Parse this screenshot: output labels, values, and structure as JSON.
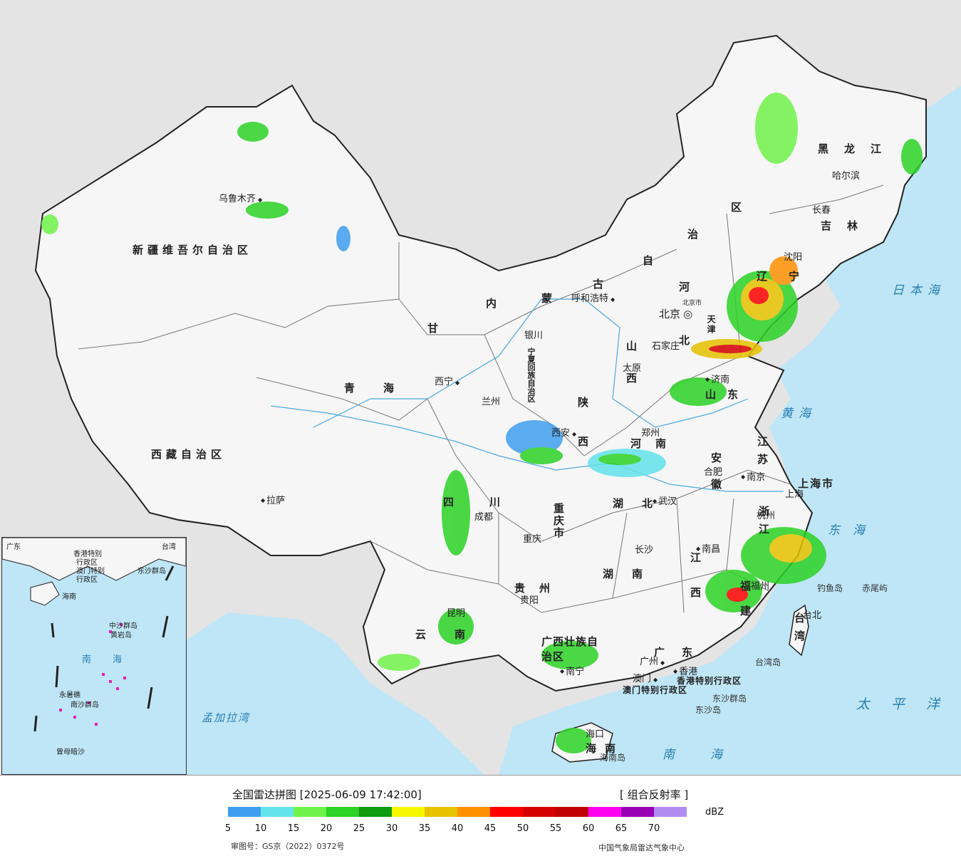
{
  "legend": {
    "title": "全国雷达拼图 [2025-06-09 17:42:00]",
    "product": "[ 组合反射率 ]",
    "unit": "dBZ",
    "ticks": [
      "5",
      "10",
      "15",
      "20",
      "25",
      "30",
      "35",
      "40",
      "45",
      "50",
      "55",
      "60",
      "65",
      "70"
    ],
    "colors": [
      "#3f9ef0",
      "#63e3eb",
      "#6ff24a",
      "#2cd226",
      "#0e9b0e",
      "#f7f700",
      "#e6c200",
      "#ff9100",
      "#ff0000",
      "#d60000",
      "#c00000",
      "#ff00f0",
      "#9700b4",
      "#b28df0"
    ],
    "approval": "审图号：GS京（2022）0372号",
    "center": "中国气象局雷达气象中心"
  },
  "colors": {
    "land": "#f4f4f4",
    "sea": "#bfe6f6",
    "outside": "#e4e4e4",
    "river": "#4aa8dc"
  },
  "provinces": {
    "xinjiang": "新疆维吾尔自治区",
    "xizang": "西藏自治区",
    "qinghai": "青海",
    "gansu": "甘",
    "neimeng": [
      "内",
      "蒙",
      "古",
      "自",
      "治",
      "区"
    ],
    "heilongjiang": "黑龙江",
    "jilin": "吉林",
    "liaoning": "辽宁",
    "hebei": "河北",
    "shanxi": "山西",
    "shandong": "山东",
    "henan": "河南",
    "shaanxi": "陕西",
    "ningxia": "宁夏回族自治区",
    "sichuan": "四川",
    "chongqing": "重庆市",
    "hubei": "湖北",
    "hunan": "湖南",
    "guizhou": "贵州",
    "yunnan": "云南",
    "guangxi": "广西壮族自治区",
    "guangdong": "广东",
    "jiangxi": "江西",
    "fujian": "福建",
    "zhejiang": "浙江",
    "jiangsu": "江苏",
    "anhui": "安徽",
    "shanghai": "上海市",
    "taiwan": "台湾",
    "hainan": "海南",
    "hongkong": "香港特别行政区",
    "macau": "澳门特别行政区",
    "beijing_city": "北京市",
    "tianjin": "天津"
  },
  "cities": {
    "urumqi": "乌鲁木齐",
    "lhasa": "拉萨",
    "xining": "西宁",
    "lanzhou": "兰州",
    "yinchuan": "银川",
    "hohhot": "呼和浩特",
    "beijing": "北京",
    "shijiazhuang": "石家庄",
    "taiyuan": "太原",
    "jinan": "济南",
    "zhengzhou": "郑州",
    "xian": "西安",
    "chengdu": "成都",
    "chongqing": "重庆",
    "wuhan": "武汉",
    "hefei": "合肥",
    "nanjing": "南京",
    "shanghai": "上海",
    "hangzhou": "杭州",
    "changsha": "长沙",
    "nanchang": "南昌",
    "fuzhou": "福州",
    "guiyang": "贵阳",
    "kunming": "昆明",
    "nanning": "南宁",
    "guangzhou": "广州",
    "hongkong": "香港",
    "macau": "澳门",
    "haikou": "海口",
    "taipei": "台北",
    "harbin": "哈尔滨",
    "changchun": "长春",
    "shenyang": "沈阳"
  },
  "seas": {
    "japan": "日本海",
    "yellow": "黄海",
    "east": "东海",
    "south": "南海",
    "pacific": "太平洋",
    "bengal": "孟加拉湾"
  },
  "islands": {
    "diaoyu": "钓鱼岛",
    "chiwei": "赤尾屿",
    "taiwan_island": "台湾岛",
    "hainan_island": "海南岛",
    "dongsha_islands": "东沙群岛",
    "dongsha_island": "东沙岛"
  },
  "inset": {
    "labels": [
      "广东",
      "台湾",
      "香港特别",
      "行政区",
      "澳门特别",
      "行政区",
      "东沙群岛",
      "海南",
      "海",
      "南",
      "中沙群岛",
      "黄岩岛",
      "南沙群岛",
      "永暑礁",
      "曾母暗沙"
    ]
  }
}
